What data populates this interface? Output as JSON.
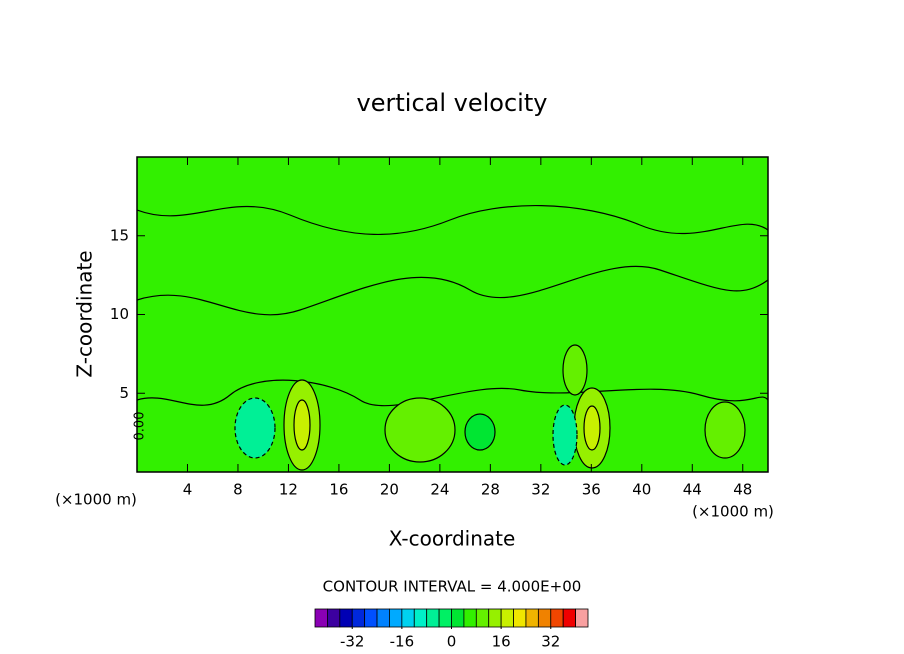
{
  "chart_data": {
    "type": "contour",
    "title": "vertical velocity",
    "x_label": "X-coordinate",
    "y_label": "Z-coordinate",
    "x_unit": "(×1000 m)",
    "y_unit": "(×1000 m)",
    "xlim": [
      0,
      50
    ],
    "xticks": [
      4,
      8,
      12,
      16,
      20,
      24,
      28,
      32,
      36,
      40,
      44,
      48
    ],
    "ylim": [
      0,
      20
    ],
    "yticks": [
      5,
      10,
      15
    ],
    "contour_label": "0.00",
    "contour_interval": "CONTOUR INTERVAL = 4.000E+00",
    "colorbar": {
      "clim": [
        -44,
        44
      ],
      "ticks": [
        -32,
        -16,
        0,
        16,
        32
      ],
      "colors": [
        "#8a00b4",
        "#3c00a0",
        "#0000b4",
        "#0028dc",
        "#0050ff",
        "#0082ff",
        "#00aaff",
        "#00d2f0",
        "#00f0c8",
        "#00f096",
        "#00f064",
        "#00e632",
        "#32f000",
        "#64f000",
        "#96f000",
        "#c8f000",
        "#f0e600",
        "#f0b400",
        "#f08200",
        "#f04600",
        "#f00000",
        "#f8a0a0"
      ]
    }
  }
}
